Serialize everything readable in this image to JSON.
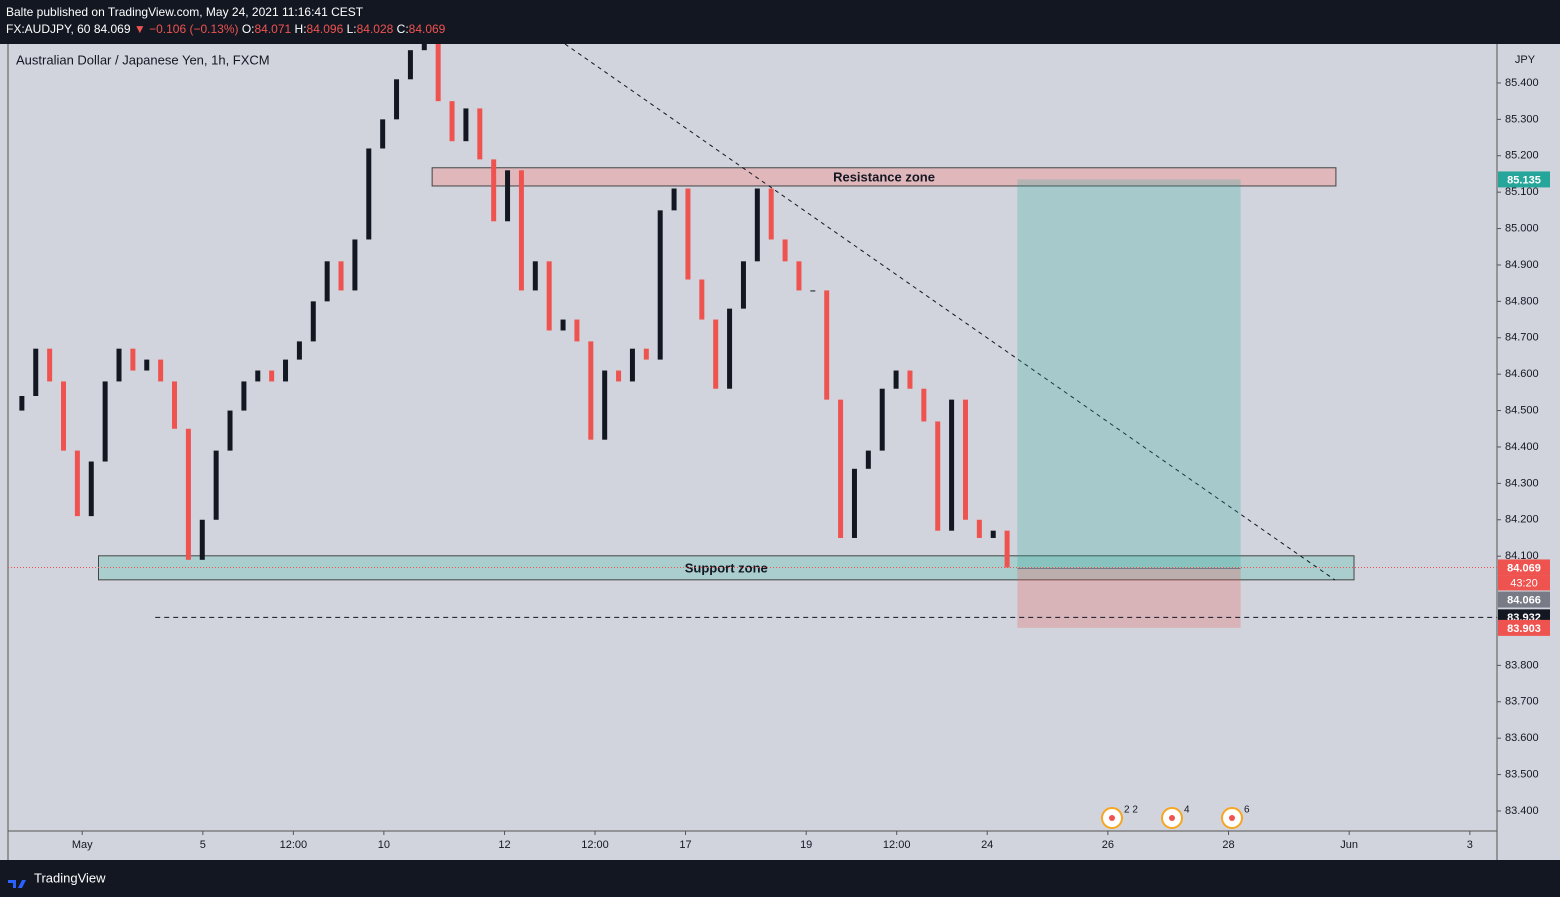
{
  "header": {
    "author": "Balte published on TradingView.com, May 24, 2021 11:16:41 CEST",
    "symbol": "FX:AUDJPY, 60",
    "last": "84.069",
    "change": "▼ −0.106 (−0.13%)",
    "ohlc": [
      {
        "label": "O:",
        "value": "84.071"
      },
      {
        "label": "H:",
        "value": "84.096"
      },
      {
        "label": "L:",
        "value": "84.028"
      },
      {
        "label": "C:",
        "value": "84.069"
      }
    ]
  },
  "chart_data": {
    "type": "candlestick",
    "title": "Australian Dollar / Japanese Yen, 1h, FXCM",
    "currency": "JPY",
    "up_color": "#131722",
    "down_color": "#ef5350",
    "x": [
      -1.0,
      -0.77,
      -0.54,
      -0.31,
      -0.08,
      0.15,
      0.38,
      0.61,
      0.84,
      1.07,
      1.3,
      1.53,
      1.76,
      1.99,
      2.22,
      2.45,
      2.68,
      2.91,
      3.14,
      3.37,
      3.6,
      3.83,
      4.06,
      4.29,
      4.52,
      4.75,
      4.98,
      5.21,
      5.44,
      5.67,
      5.9,
      6.13,
      6.36,
      6.59,
      6.82,
      7.05,
      7.28,
      7.51,
      7.74,
      7.97,
      8.2,
      8.43,
      8.66,
      8.89,
      9.12,
      9.35,
      9.58,
      9.81,
      10.04,
      10.27,
      10.5,
      10.73,
      10.96,
      11.19,
      11.42,
      11.65,
      11.88,
      12.11,
      12.34,
      12.57,
      12.8,
      13.03,
      13.26,
      13.49,
      13.72,
      13.95,
      14.18,
      14.41,
      14.64,
      14.87,
      15.1,
      15.33
    ],
    "open": [
      84.5,
      84.54,
      84.67,
      84.58,
      84.39,
      84.21,
      84.36,
      84.58,
      84.67,
      84.61,
      84.64,
      84.58,
      84.45,
      84.09,
      84.2,
      84.39,
      84.5,
      84.58,
      84.61,
      84.58,
      84.64,
      84.69,
      84.8,
      84.91,
      84.83,
      84.97,
      85.22,
      85.3,
      85.41,
      85.49,
      85.52,
      85.35,
      85.24,
      85.33,
      85.19,
      85.02,
      85.16,
      84.83,
      84.91,
      84.72,
      84.75,
      84.69,
      84.42,
      84.61,
      84.58,
      84.67,
      84.64,
      85.05,
      85.11,
      84.86,
      84.75,
      84.56,
      84.78,
      84.91,
      85.11,
      84.97,
      84.91,
      84.83,
      84.83,
      84.53,
      84.15,
      84.34,
      84.39,
      84.56,
      84.61,
      84.56,
      84.47,
      84.17,
      84.53,
      84.2,
      84.15,
      84.17
    ],
    "close": [
      84.54,
      84.67,
      84.58,
      84.39,
      84.21,
      84.36,
      84.58,
      84.67,
      84.61,
      84.64,
      84.58,
      84.45,
      84.09,
      84.2,
      84.39,
      84.5,
      84.58,
      84.61,
      84.58,
      84.64,
      84.69,
      84.8,
      84.91,
      84.83,
      84.97,
      85.22,
      85.3,
      85.41,
      85.49,
      85.52,
      85.35,
      85.24,
      85.33,
      85.19,
      85.02,
      85.16,
      84.83,
      84.91,
      84.72,
      84.75,
      84.69,
      84.42,
      84.61,
      84.58,
      84.67,
      84.64,
      85.05,
      85.11,
      84.86,
      84.75,
      84.56,
      84.78,
      84.91,
      85.11,
      84.97,
      84.91,
      84.83,
      84.83,
      84.53,
      84.15,
      84.34,
      84.39,
      84.56,
      84.61,
      84.56,
      84.47,
      84.17,
      84.53,
      84.2,
      84.15,
      84.17,
      84.069
    ],
    "xlim": [
      -1.23,
      23.45
    ],
    "ylim": [
      83.345,
      85.507
    ],
    "xticks": [
      {
        "value": 0,
        "label": "May"
      },
      {
        "value": 2,
        "label": "5"
      },
      {
        "value": 3.5,
        "label": "12:00"
      },
      {
        "value": 5,
        "label": "10"
      },
      {
        "value": 7,
        "label": "12"
      },
      {
        "value": 8.5,
        "label": "12:00"
      },
      {
        "value": 10,
        "label": "17"
      },
      {
        "value": 12,
        "label": "19"
      },
      {
        "value": 13.5,
        "label": "12:00"
      },
      {
        "value": 15,
        "label": "24"
      },
      {
        "value": 17,
        "label": "26"
      },
      {
        "value": 19,
        "label": "28"
      },
      {
        "value": 21,
        "label": "Jun"
      },
      {
        "value": 23,
        "label": "3"
      }
    ],
    "yticks": [
      {
        "value": 83.4,
        "label": "83.400"
      },
      {
        "value": 83.5,
        "label": "83.500"
      },
      {
        "value": 83.6,
        "label": "83.600"
      },
      {
        "value": 83.7,
        "label": "83.700"
      },
      {
        "value": 83.8,
        "label": "83.800"
      },
      {
        "value": 84.1,
        "label": "84.100"
      },
      {
        "value": 84.2,
        "label": "84.200"
      },
      {
        "value": 84.3,
        "label": "84.300"
      },
      {
        "value": 84.4,
        "label": "84.400"
      },
      {
        "value": 84.5,
        "label": "84.500"
      },
      {
        "value": 84.6,
        "label": "84.600"
      },
      {
        "value": 84.7,
        "label": "84.700"
      },
      {
        "value": 84.8,
        "label": "84.800"
      },
      {
        "value": 84.9,
        "label": "84.900"
      },
      {
        "value": 85.0,
        "label": "85.000"
      },
      {
        "value": 85.1,
        "label": "85.100"
      },
      {
        "value": 85.2,
        "label": "85.200"
      },
      {
        "value": 85.3,
        "label": "85.300"
      },
      {
        "value": 85.4,
        "label": "85.400"
      }
    ],
    "grid": false,
    "price_labels": [
      {
        "value": 85.135,
        "color": "#26a69a"
      },
      {
        "value": 84.069,
        "color": "#ef5350",
        "countdown": "43:20"
      },
      {
        "value": 84.066,
        "color": "#787b86"
      },
      {
        "value": 83.932,
        "color": "#131722"
      },
      {
        "value": 83.903,
        "color": "#ef5350"
      }
    ],
    "zones": [
      {
        "label": "Resistance zone",
        "x": [
          5.8,
          20.78
        ],
        "y": [
          85.117,
          85.167
        ],
        "color": "#e3b3b6"
      },
      {
        "label": "Support zone",
        "x": [
          0.27,
          21.08
        ],
        "y": [
          84.035,
          84.101
        ],
        "color": "#a3cbca"
      }
    ],
    "position": {
      "x": [
        15.5,
        19.2
      ],
      "entry": 84.066,
      "target": 85.135,
      "stop": 83.903
    },
    "stop_line": {
      "x": 1.21,
      "value": 83.932
    },
    "event_counts": [
      "2 2",
      "4",
      "6"
    ]
  },
  "footer": {
    "brand": "TradingView"
  }
}
